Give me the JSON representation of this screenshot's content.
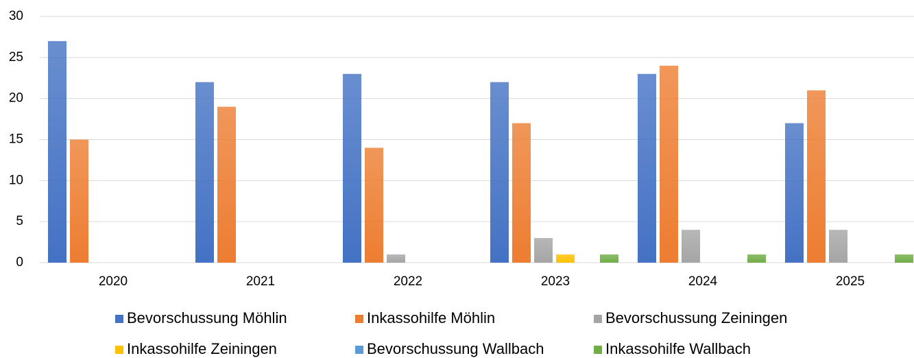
{
  "chart_data": {
    "type": "bar",
    "categories": [
      "2020",
      "2021",
      "2022",
      "2023",
      "2024",
      "2025"
    ],
    "series": [
      {
        "name": "Bevorschussung Möhlin",
        "color": "#4472c4",
        "values": [
          27,
          22,
          23,
          22,
          23,
          17
        ]
      },
      {
        "name": "Inkassohilfe Möhlin",
        "color": "#ed7d31",
        "values": [
          15,
          19,
          14,
          17,
          24,
          21
        ]
      },
      {
        "name": "Bevorschussung Zeiningen",
        "color": "#a5a5a5",
        "values": [
          0,
          0,
          1,
          3,
          4,
          4
        ]
      },
      {
        "name": "Inkassohilfe Zeiningen",
        "color": "#ffc000",
        "values": [
          0,
          0,
          0,
          1,
          0,
          0
        ]
      },
      {
        "name": "Bevorschussung Wallbach",
        "color": "#5b9bd5",
        "values": [
          0,
          0,
          0,
          0,
          0,
          0
        ]
      },
      {
        "name": "Inkassohilfe Wallbach",
        "color": "#70ad47",
        "values": [
          0,
          0,
          0,
          1,
          1,
          1
        ]
      }
    ],
    "ylim": [
      0,
      30
    ],
    "yticks": [
      0,
      5,
      10,
      15,
      20,
      25,
      30
    ],
    "grid": true,
    "legend": "bottom"
  }
}
